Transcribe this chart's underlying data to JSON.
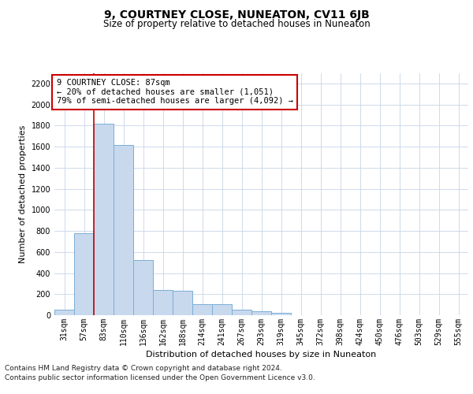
{
  "title": "9, COURTNEY CLOSE, NUNEATON, CV11 6JB",
  "subtitle": "Size of property relative to detached houses in Nuneaton",
  "xlabel": "Distribution of detached houses by size in Nuneaton",
  "ylabel": "Number of detached properties",
  "bar_labels": [
    "31sqm",
    "57sqm",
    "83sqm",
    "110sqm",
    "136sqm",
    "162sqm",
    "188sqm",
    "214sqm",
    "241sqm",
    "267sqm",
    "293sqm",
    "319sqm",
    "345sqm",
    "372sqm",
    "398sqm",
    "424sqm",
    "450sqm",
    "476sqm",
    "503sqm",
    "529sqm",
    "555sqm"
  ],
  "bar_values": [
    55,
    780,
    1820,
    1615,
    520,
    240,
    235,
    107,
    107,
    55,
    40,
    20,
    0,
    0,
    0,
    0,
    0,
    0,
    0,
    0,
    0
  ],
  "bar_color": "#c8d9ee",
  "bar_edge_color": "#7aaed6",
  "highlight_line_index": 2,
  "highlight_line_color": "#cc0000",
  "ylim": [
    0,
    2300
  ],
  "yticks": [
    0,
    200,
    400,
    600,
    800,
    1000,
    1200,
    1400,
    1600,
    1800,
    2000,
    2200
  ],
  "annotation_line1": "9 COURTNEY CLOSE: 87sqm",
  "annotation_line2": "← 20% of detached houses are smaller (1,051)",
  "annotation_line3": "79% of semi-detached houses are larger (4,092) →",
  "annotation_box_color": "#ffffff",
  "annotation_border_color": "#cc0000",
  "footer_line1": "Contains HM Land Registry data © Crown copyright and database right 2024.",
  "footer_line2": "Contains public sector information licensed under the Open Government Licence v3.0.",
  "bg_color": "#ffffff",
  "grid_color": "#c8d4e8",
  "title_fontsize": 10,
  "subtitle_fontsize": 8.5,
  "ylabel_fontsize": 8,
  "xlabel_fontsize": 8,
  "tick_fontsize": 7,
  "annotation_fontsize": 7.5,
  "footer_fontsize": 6.5
}
